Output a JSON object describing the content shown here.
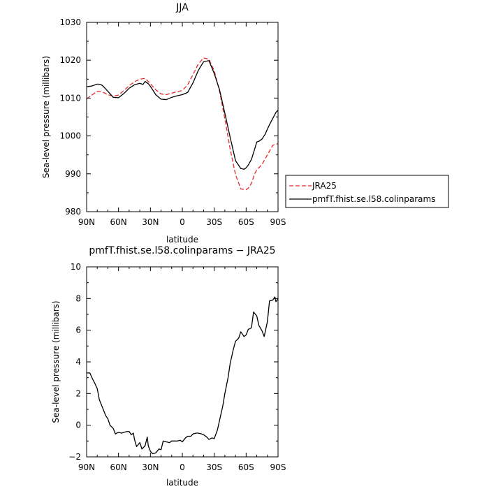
{
  "chart_data": [
    {
      "type": "line",
      "title": "JJA",
      "xlabel": "latitude",
      "ylabel": "Sea-level pressure (millibars)",
      "xlim": [
        90,
        -90
      ],
      "ylim": [
        980,
        1030
      ],
      "x_ticks": [
        90,
        60,
        30,
        0,
        -30,
        -60,
        -90
      ],
      "x_tick_labels": [
        "90N",
        "60N",
        "30N",
        "0",
        "30S",
        "60S",
        "90S"
      ],
      "y_ticks": [
        980,
        990,
        1000,
        1010,
        1020,
        1030
      ],
      "y_tick_labels": [
        "980",
        "990",
        "1000",
        "1010",
        "1020",
        "1030"
      ],
      "legend_position": "right",
      "series": [
        {
          "name": "JRA25",
          "color": "#e8292b",
          "dash": "dashed",
          "x": [
            90,
            85,
            80,
            75,
            70,
            65,
            60,
            55,
            50,
            45,
            40,
            35,
            30,
            25,
            20,
            15,
            10,
            5,
            0,
            -5,
            -10,
            -15,
            -20,
            -25,
            -30,
            -35,
            -40,
            -45,
            -50,
            -55,
            -60,
            -62,
            -65,
            -68,
            -70,
            -75,
            -80,
            -85,
            -90
          ],
          "values": [
            1009.8,
            1010.8,
            1011.8,
            1011.6,
            1010.9,
            1010.5,
            1010.8,
            1012.0,
            1013.3,
            1014.3,
            1015.0,
            1015.2,
            1013.8,
            1012.2,
            1011.1,
            1010.9,
            1011.3,
            1011.7,
            1012.0,
            1013.5,
            1016.2,
            1019.0,
            1020.6,
            1020.3,
            1017.2,
            1011.8,
            1004.5,
            996.5,
            989.8,
            986.0,
            985.8,
            986.2,
            987.5,
            990.0,
            991.0,
            992.5,
            995.0,
            997.5,
            998.0
          ]
        },
        {
          "name": "pmfT.fhist.se.l58.colinparams",
          "color": "#000000",
          "dash": "solid",
          "x": [
            90,
            85,
            80,
            77,
            75,
            70,
            65,
            60,
            55,
            50,
            45,
            40,
            37,
            35,
            32,
            30,
            25,
            20,
            15,
            10,
            5,
            0,
            -5,
            -10,
            -15,
            -20,
            -25,
            -30,
            -35,
            -40,
            -45,
            -50,
            -55,
            -58,
            -60,
            -62,
            -65,
            -68,
            -70,
            -72,
            -75,
            -78,
            -80,
            -82,
            -85,
            -88,
            -90
          ],
          "values": [
            1013.0,
            1013.2,
            1013.7,
            1013.6,
            1013.3,
            1011.8,
            1010.2,
            1010.1,
            1011.2,
            1012.6,
            1013.5,
            1013.9,
            1013.6,
            1014.4,
            1013.8,
            1013.1,
            1010.9,
            1009.7,
            1009.6,
            1010.2,
            1010.6,
            1010.9,
            1011.5,
            1014.0,
            1017.3,
            1019.6,
            1019.9,
            1016.5,
            1012.2,
            1006.0,
            999.6,
            993.5,
            991.4,
            991.2,
            991.6,
            992.3,
            993.8,
            996.5,
            998.4,
            998.6,
            999.2,
            1000.5,
            1001.8,
            1003.0,
            1004.6,
            1006.2,
            1006.8
          ]
        }
      ]
    },
    {
      "type": "line",
      "title": "pmfT.fhist.se.l58.colinparams − JRA25",
      "xlabel": "latitude",
      "ylabel": "Sea-level pressure (millibars)",
      "xlim": [
        90,
        -90
      ],
      "ylim": [
        -2,
        10
      ],
      "x_ticks": [
        90,
        60,
        30,
        0,
        -30,
        -60,
        -90
      ],
      "x_tick_labels": [
        "90N",
        "60N",
        "30N",
        "0",
        "30S",
        "60S",
        "90S"
      ],
      "y_ticks": [
        -2,
        0,
        2,
        4,
        6,
        8,
        10
      ],
      "y_tick_labels": [
        "−2",
        "0",
        "2",
        "4",
        "6",
        "8",
        "10"
      ],
      "series": [
        {
          "color": "#000000",
          "dash": "solid",
          "x": [
            90,
            87,
            85,
            82,
            80,
            78,
            75,
            72,
            70,
            68,
            65,
            63,
            60,
            57,
            55,
            52,
            50,
            48,
            46,
            45,
            43,
            40,
            38,
            35,
            33,
            32,
            30,
            28,
            25,
            22,
            20,
            18,
            15,
            12,
            10,
            7,
            5,
            2,
            0,
            -3,
            -5,
            -8,
            -10,
            -13,
            -15,
            -18,
            -20,
            -23,
            -25,
            -28,
            -30,
            -33,
            -35,
            -38,
            -40,
            -43,
            -45,
            -48,
            -50,
            -53,
            -55,
            -58,
            -60,
            -62,
            -65,
            -67,
            -70,
            -72,
            -75,
            -77,
            -80,
            -82,
            -85,
            -87,
            -88,
            -90
          ],
          "values": [
            3.3,
            3.3,
            3.0,
            2.6,
            2.3,
            1.6,
            1.1,
            0.6,
            0.4,
            0.0,
            -0.2,
            -0.55,
            -0.45,
            -0.5,
            -0.45,
            -0.4,
            -0.4,
            -0.6,
            -0.5,
            -0.9,
            -1.35,
            -1.1,
            -1.5,
            -1.3,
            -0.75,
            -1.3,
            -1.65,
            -1.8,
            -1.75,
            -1.5,
            -1.55,
            -1.0,
            -1.05,
            -1.1,
            -1.0,
            -1.0,
            -1.0,
            -0.95,
            -1.05,
            -0.8,
            -0.7,
            -0.7,
            -0.55,
            -0.5,
            -0.5,
            -0.55,
            -0.6,
            -0.75,
            -0.9,
            -0.8,
            -0.85,
            -0.3,
            0.3,
            1.2,
            2.0,
            3.0,
            3.9,
            4.8,
            5.3,
            5.5,
            5.9,
            5.6,
            5.7,
            6.05,
            6.15,
            7.15,
            6.9,
            6.3,
            5.95,
            5.6,
            6.55,
            7.85,
            7.9,
            8.1,
            7.8,
            8.0
          ]
        }
      ]
    }
  ]
}
